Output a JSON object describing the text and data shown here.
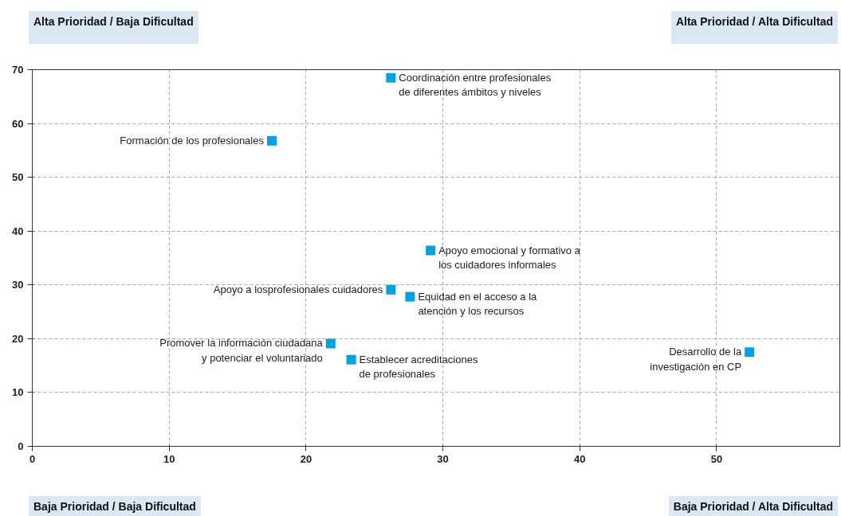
{
  "chart_data": {
    "type": "scatter",
    "x": [
      26.2,
      17.5,
      29.1,
      26.2,
      27.6,
      21.8,
      23.3,
      52.4
    ],
    "series": [
      {
        "color": "#00a3e0",
        "values": [
          68.5,
          56.8,
          36.4,
          29.1,
          27.8,
          19.1,
          16.1,
          17.5
        ]
      }
    ],
    "xlim": [
      0,
      59
    ],
    "ylim": [
      0,
      70
    ],
    "xticks": [
      0,
      10,
      20,
      30,
      40,
      50
    ],
    "yticks": [
      0,
      10,
      20,
      30,
      40,
      50,
      60,
      70
    ],
    "grid": true,
    "marker": "square",
    "annotations": [
      "Alta Prioridad / Baja Dificultad",
      "Alta Prioridad / Alta Dificultad",
      "Baja Prioridad / Baja Dificultad",
      "Baja Prioridad / Alta Dificultad",
      {
        "text": "Coordinación entre profesionales\nde diferentes ámbitos y niveles",
        "x": 26.2,
        "y": 68.5
      },
      {
        "text": "Formación de los profesionales",
        "x": 17.5,
        "y": 56.8
      },
      {
        "text": "Apoyo emocional y formativo a\nlos cuidadores informales",
        "x": 29.1,
        "y": 36.4
      },
      {
        "text": "Apoyo a losprofesionales cuidadores",
        "x": 26.2,
        "y": 29.1
      },
      {
        "text": "Equidad en el acceso a la\natención y los recursos",
        "x": 27.6,
        "y": 27.8
      },
      {
        "text": "Promover la información ciudadana\ny potenciar el voluntariado",
        "x": 21.8,
        "y": 19.1
      },
      {
        "text": "Establecer acreditaciones\nde profesionales",
        "x": 23.3,
        "y": 16.1
      },
      {
        "text": "Desarrollo de la\ninvestigación en CP",
        "x": 52.4,
        "y": 17.5
      }
    ]
  }
}
